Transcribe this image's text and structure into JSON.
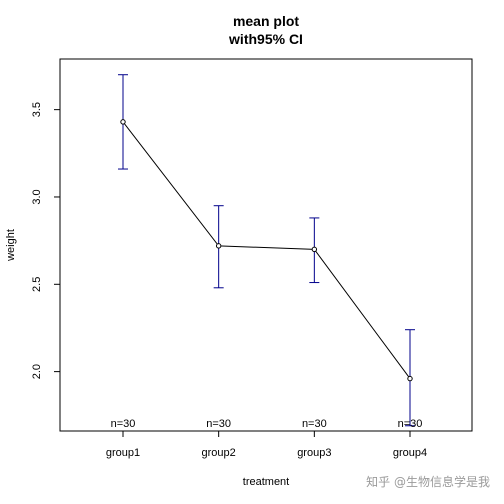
{
  "chart_data": {
    "type": "line",
    "title": "mean plot",
    "subtitle": "with95% CI",
    "xlabel": "treatment",
    "ylabel": "weight",
    "categories": [
      "group1",
      "group2",
      "group3",
      "group4"
    ],
    "means": [
      3.43,
      2.72,
      2.7,
      1.96
    ],
    "ci_lower": [
      3.16,
      2.48,
      2.51,
      1.69
    ],
    "ci_upper": [
      3.7,
      2.95,
      2.88,
      2.24
    ],
    "n_labels": [
      "n=30",
      "n=30",
      "n=30",
      "n=30"
    ],
    "y_ticks": [
      2.0,
      2.5,
      3.0,
      3.5
    ],
    "y_tick_labels": [
      "2.0",
      "2.5",
      "3.0",
      "3.5"
    ],
    "ylim": [
      1.66,
      3.79
    ],
    "grid": false,
    "line_color": "#000000",
    "errorbar_color": "#00008b"
  },
  "watermark": "知乎 @生物信息学是我"
}
